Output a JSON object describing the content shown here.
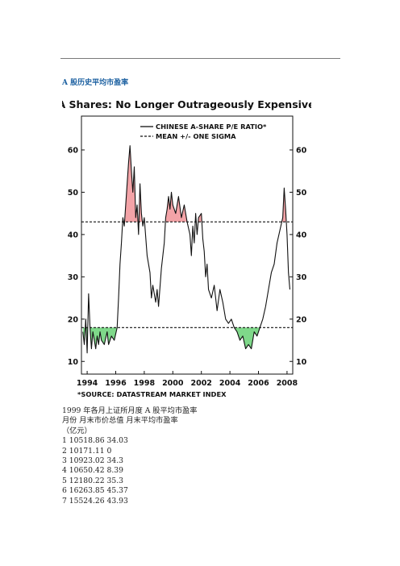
{
  "heading": "A 股历史平均市盈率",
  "chart_data": {
    "type": "line",
    "title": "A Shares: No Longer Outrageously Expensive",
    "source": "*SOURCE: DATASTREAM MARKET INDEX",
    "legend": [
      "CHINESE A-SHARE P/E RATIO*",
      "MEAN +/- ONE SIGMA"
    ],
    "legend_position": "top-right",
    "xlim": [
      1993.6,
      2008.4
    ],
    "ylim": [
      7,
      68
    ],
    "y_ticks": [
      10,
      20,
      30,
      40,
      50,
      60
    ],
    "x_ticks": [
      1994,
      1996,
      1998,
      2000,
      2002,
      2004,
      2006,
      2008
    ],
    "upper_band": 43,
    "lower_band": 18,
    "series": [
      {
        "x": [
          1993.7,
          1993.8,
          1993.9,
          1994.0,
          1994.1,
          1994.2,
          1994.3,
          1994.4,
          1994.5,
          1994.6,
          1994.7,
          1994.8,
          1994.9,
          1995.0,
          1995.2,
          1995.4,
          1995.5,
          1995.7,
          1995.9,
          1996.1,
          1996.2,
          1996.3,
          1996.4,
          1996.5,
          1996.6,
          1996.7,
          1996.8,
          1996.9,
          1997.0,
          1997.1,
          1997.2,
          1997.3,
          1997.4,
          1997.5,
          1997.6,
          1997.7,
          1997.8,
          1997.9,
          1998.0,
          1998.2,
          1998.4,
          1998.5,
          1998.6,
          1998.8,
          1998.9,
          1999.0,
          1999.2,
          1999.4,
          1999.5,
          1999.6,
          1999.7,
          1999.8,
          1999.9,
          2000.0,
          2000.2,
          2000.4,
          2000.6,
          2000.8,
          2001.0,
          2001.2,
          2001.3,
          2001.4,
          2001.5,
          2001.6,
          2001.7,
          2001.8,
          2002.0,
          2002.1,
          2002.2,
          2002.3,
          2002.4,
          2002.5,
          2002.7,
          2002.9,
          2003.1,
          2003.3,
          2003.5,
          2003.7,
          2003.9,
          2004.1,
          2004.3,
          2004.5,
          2004.7,
          2004.9,
          2005.1,
          2005.3,
          2005.5,
          2005.7,
          2005.9,
          2006.1,
          2006.3,
          2006.5,
          2006.7,
          2006.9,
          2007.1,
          2007.3,
          2007.5,
          2007.7,
          2007.8,
          2007.9,
          2008.0,
          2008.1,
          2008.2
        ],
        "values": [
          17,
          14,
          20,
          12,
          26,
          18,
          13,
          17,
          15,
          13,
          16,
          14,
          17,
          15,
          14,
          17,
          14,
          16,
          15,
          18,
          25,
          33,
          38,
          44,
          42,
          47,
          52,
          57,
          61,
          55,
          50,
          56,
          44,
          47,
          40,
          52,
          45,
          42,
          44,
          35,
          31,
          25,
          28,
          24,
          27,
          23,
          32,
          38,
          44,
          46,
          49,
          46,
          50,
          47,
          45,
          49,
          44,
          47,
          43,
          40,
          35,
          42,
          38,
          45,
          40,
          44,
          45,
          39,
          36,
          30,
          33,
          27,
          25,
          28,
          22,
          27,
          24,
          20,
          19,
          20,
          18,
          17,
          15,
          16,
          13,
          14,
          13,
          17,
          16,
          18,
          20,
          23,
          27,
          31,
          33,
          38,
          41,
          44,
          51,
          46,
          40,
          31,
          27
        ]
      }
    ]
  },
  "text_lines": [
    "1999 年各月上证所月度 A 股平均市盈率",
    "月份  月末市价总值  月末平均市盈率",
    "（亿元）",
    "1 10518.86 34.03",
    "2 10171.11 0",
    "3 10923.02 34.3",
    "4 10650.42 8.39",
    "5 12180.22 35.3",
    "6 16263.85 45.37",
    "7 15524.26 43.93"
  ]
}
